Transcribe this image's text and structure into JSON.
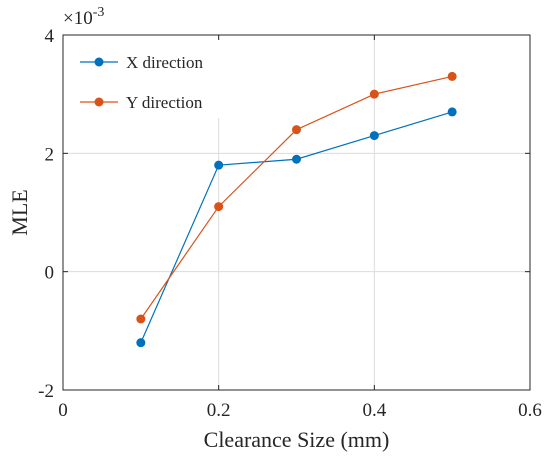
{
  "chart_data": {
    "type": "line",
    "xlabel": "Clearance Size (mm)",
    "ylabel": "MLE",
    "y_exponent_label": {
      "base": "×10",
      "exp": "-3"
    },
    "xlim": [
      0,
      0.6
    ],
    "ylim": [
      -2,
      4
    ],
    "x_ticks": [
      0,
      0.2,
      0.4,
      0.6
    ],
    "x_tick_labels": [
      "0",
      "0.2",
      "0.4",
      "0.6"
    ],
    "y_ticks": [
      -2,
      0,
      2,
      4
    ],
    "y_tick_labels": [
      "-2",
      "0",
      "2",
      "4"
    ],
    "grid": true,
    "legend": "top-left",
    "x": [
      0.1,
      0.2,
      0.3,
      0.4,
      0.5
    ],
    "series": [
      {
        "name": "X direction",
        "color": "#0072BD",
        "values": [
          -1.2,
          1.8,
          1.9,
          2.3,
          2.7
        ]
      },
      {
        "name": "Y direction",
        "color": "#D95319",
        "values": [
          -0.8,
          1.1,
          2.4,
          3.0,
          3.3
        ]
      }
    ]
  }
}
